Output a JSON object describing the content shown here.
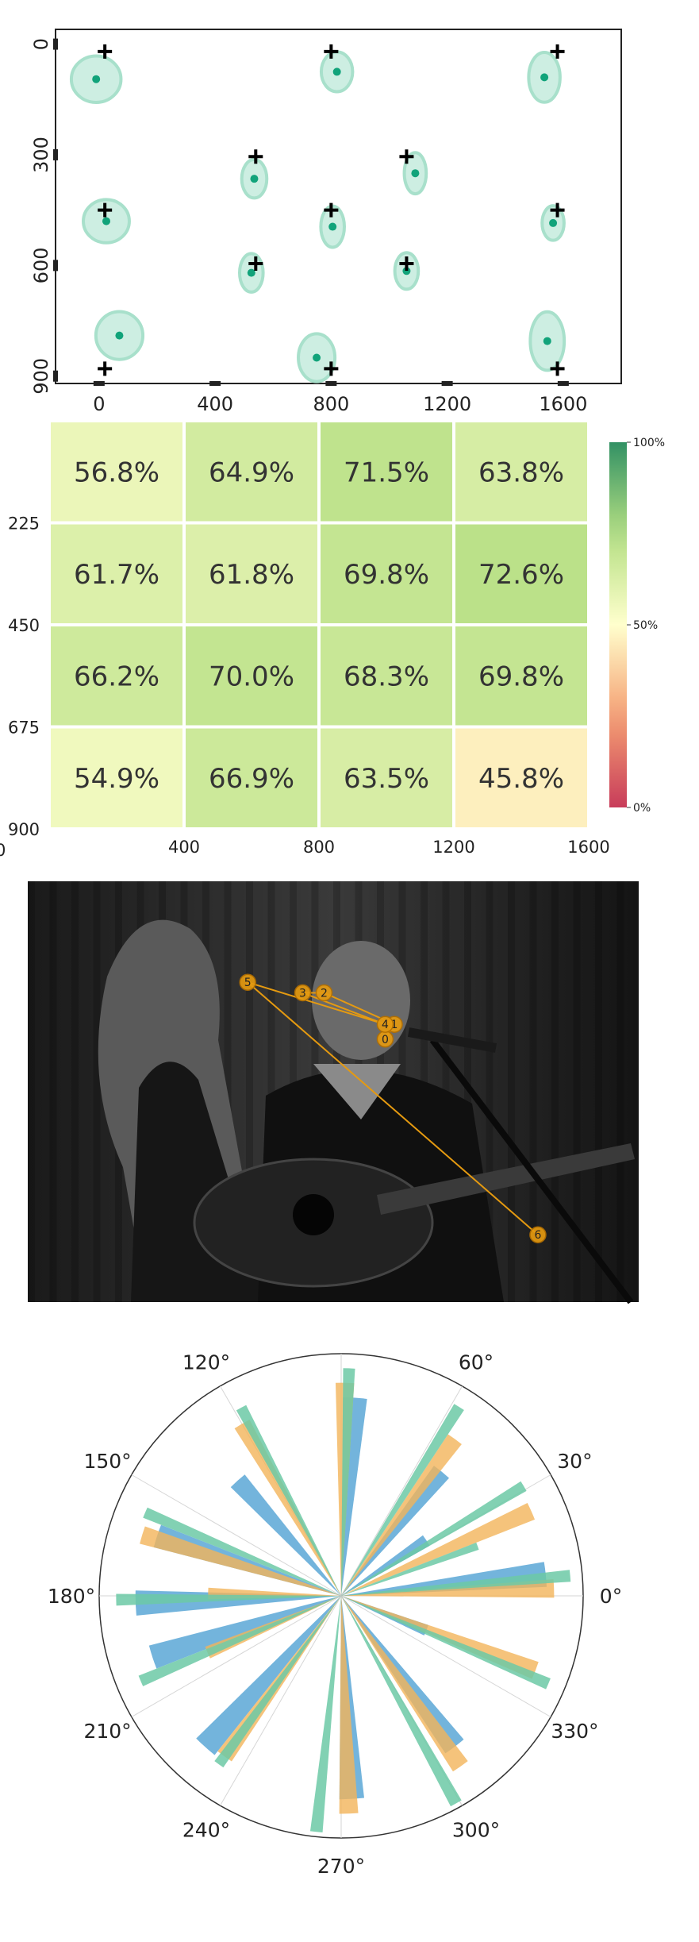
{
  "chart_data": [
    {
      "type": "scatter",
      "xlim": [
        -150,
        1800
      ],
      "ylim": [
        920,
        -40
      ],
      "x_ticks": [
        0,
        400,
        800,
        1200,
        1600
      ],
      "y_ticks": [
        0,
        300,
        600,
        900
      ],
      "targets": [
        {
          "x": 20,
          "y": 20
        },
        {
          "x": 800,
          "y": 20
        },
        {
          "x": 1580,
          "y": 20
        },
        {
          "x": 540,
          "y": 305
        },
        {
          "x": 1060,
          "y": 305
        },
        {
          "x": 20,
          "y": 450
        },
        {
          "x": 800,
          "y": 450
        },
        {
          "x": 1580,
          "y": 450
        },
        {
          "x": 540,
          "y": 595
        },
        {
          "x": 1060,
          "y": 595
        },
        {
          "x": 20,
          "y": 880
        },
        {
          "x": 800,
          "y": 880
        },
        {
          "x": 1580,
          "y": 880
        }
      ],
      "gaze_estimates": [
        {
          "x": -10,
          "y": 95,
          "rx": 95,
          "ry": 70
        },
        {
          "x": 820,
          "y": 75,
          "rx": 60,
          "ry": 60
        },
        {
          "x": 1535,
          "y": 90,
          "rx": 60,
          "ry": 75
        },
        {
          "x": 535,
          "y": 365,
          "rx": 48,
          "ry": 58
        },
        {
          "x": 1090,
          "y": 350,
          "rx": 42,
          "ry": 62
        },
        {
          "x": 25,
          "y": 480,
          "rx": 88,
          "ry": 65
        },
        {
          "x": 805,
          "y": 495,
          "rx": 45,
          "ry": 62
        },
        {
          "x": 1565,
          "y": 485,
          "rx": 42,
          "ry": 52
        },
        {
          "x": 525,
          "y": 620,
          "rx": 45,
          "ry": 58
        },
        {
          "x": 1060,
          "y": 615,
          "rx": 45,
          "ry": 55
        },
        {
          "x": 70,
          "y": 790,
          "rx": 90,
          "ry": 72
        },
        {
          "x": 750,
          "y": 850,
          "rx": 70,
          "ry": 72
        },
        {
          "x": 1545,
          "y": 805,
          "rx": 65,
          "ry": 88
        }
      ]
    },
    {
      "type": "heatmap",
      "x_ticks": [
        "400",
        "800",
        "1200",
        "1600"
      ],
      "y_ticks": [
        "225",
        "450",
        "675",
        "900"
      ],
      "x_origin_label": "0",
      "values": [
        [
          56.8,
          64.9,
          71.5,
          63.8
        ],
        [
          61.7,
          61.8,
          69.8,
          72.6
        ],
        [
          66.2,
          70.0,
          68.3,
          69.8
        ],
        [
          54.9,
          66.9,
          63.5,
          45.8
        ]
      ],
      "labels": [
        [
          "56.8%",
          "64.9%",
          "71.5%",
          "63.8%"
        ],
        [
          "61.7%",
          "61.8%",
          "69.8%",
          "72.6%"
        ],
        [
          "66.2%",
          "70.0%",
          "68.3%",
          "69.8%"
        ],
        [
          "54.9%",
          "66.9%",
          "63.5%",
          "45.8%"
        ]
      ],
      "colorbar": {
        "min": 0,
        "max": 100,
        "ticks": [
          "100%",
          "50%",
          "0%"
        ]
      }
    },
    {
      "type": "scatter",
      "image": "black-and-white concert photo",
      "xlim": [
        0,
        1
      ],
      "ylim": [
        0,
        1
      ],
      "scanpath": [
        {
          "label": "0",
          "x": 0.585,
          "y": 0.375
        },
        {
          "label": "1",
          "x": 0.6,
          "y": 0.34
        },
        {
          "label": "2",
          "x": 0.485,
          "y": 0.265
        },
        {
          "label": "3",
          "x": 0.45,
          "y": 0.265
        },
        {
          "label": "4",
          "x": 0.585,
          "y": 0.34
        },
        {
          "label": "5",
          "x": 0.36,
          "y": 0.24
        },
        {
          "label": "6",
          "x": 0.835,
          "y": 0.84
        }
      ]
    },
    {
      "type": "bar",
      "polar": true,
      "angle_ticks": [
        "0°",
        "30°",
        "60°",
        "90°",
        "120°",
        "150°",
        "180°",
        "210°",
        "240°",
        "270°",
        "300°",
        "330°"
      ],
      "radius_max": 1.0,
      "series": [
        {
          "color": "#5aa7d6",
          "bars": [
            {
              "angle": 6,
              "r": 0.85
            },
            {
              "angle": 33,
              "r": 0.42
            },
            {
              "angle": 51,
              "r": 0.66
            },
            {
              "angle": 86,
              "r": 0.82
            },
            {
              "angle": 132,
              "r": 0.64
            },
            {
              "angle": 162,
              "r": 0.8
            },
            {
              "angle": 182,
              "r": 0.85
            },
            {
              "angle": 198,
              "r": 0.82
            },
            {
              "angle": 228,
              "r": 0.84
            },
            {
              "angle": 273,
              "r": 0.84
            },
            {
              "angle": 307,
              "r": 0.78
            },
            {
              "angle": 338,
              "r": 0.38
            }
          ]
        },
        {
          "color": "#f2b45a",
          "bars": [
            {
              "angle": 2,
              "r": 0.88
            },
            {
              "angle": 24,
              "r": 0.86
            },
            {
              "angle": 54,
              "r": 0.8
            },
            {
              "angle": 89,
              "r": 0.88
            },
            {
              "angle": 120,
              "r": 0.82
            },
            {
              "angle": 163,
              "r": 0.86
            },
            {
              "angle": 179,
              "r": 0.55
            },
            {
              "angle": 203,
              "r": 0.6
            },
            {
              "angle": 234,
              "r": 0.82
            },
            {
              "angle": 272,
              "r": 0.9
            },
            {
              "angle": 305,
              "r": 0.86
            },
            {
              "angle": 339,
              "r": 0.86
            }
          ]
        },
        {
          "color": "#6cc9a6",
          "bars": [
            {
              "angle": 5,
              "r": 0.95
            },
            {
              "angle": 20,
              "r": 0.6
            },
            {
              "angle": 31,
              "r": 0.88
            },
            {
              "angle": 58,
              "r": 0.92
            },
            {
              "angle": 88,
              "r": 0.94
            },
            {
              "angle": 118,
              "r": 0.88
            },
            {
              "angle": 157,
              "r": 0.88
            },
            {
              "angle": 181,
              "r": 0.93
            },
            {
              "angle": 203,
              "r": 0.9
            },
            {
              "angle": 234,
              "r": 0.86
            },
            {
              "angle": 264,
              "r": 0.98
            },
            {
              "angle": 299,
              "r": 0.98
            },
            {
              "angle": 337,
              "r": 0.93
            }
          ]
        }
      ]
    }
  ]
}
